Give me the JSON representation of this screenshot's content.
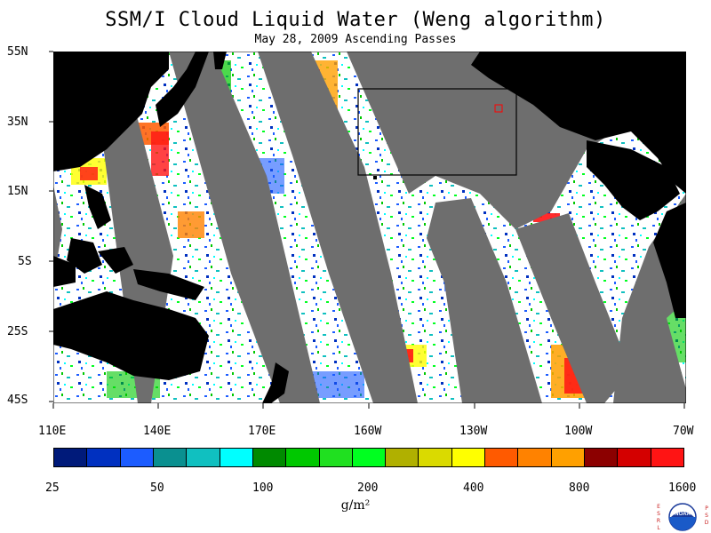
{
  "title": "SSM/I Cloud Liquid Water (Weng algorithm)",
  "subtitle": "May 28, 2009  Ascending Passes",
  "lat_labels": [
    "55N",
    "35N",
    "15N",
    "5S",
    "25S",
    "45S"
  ],
  "lon_labels": [
    "110E",
    "140E",
    "170E",
    "160W",
    "130W",
    "100W",
    "70W"
  ],
  "colorbar": {
    "colors": [
      "#001a7a",
      "#0030c0",
      "#1c5cff",
      "#0a9090",
      "#10c0c0",
      "#00ffff",
      "#008a00",
      "#00c800",
      "#20e020",
      "#00ff20",
      "#b0b000",
      "#dada00",
      "#ffff00",
      "#ff5a00",
      "#ff8200",
      "#ffa000",
      "#8c0000",
      "#d40000",
      "#ff1414"
    ],
    "labels": [
      "25",
      "50",
      "100",
      "200",
      "400",
      "800",
      "1600"
    ]
  },
  "units": "g/m²",
  "logo": {
    "left_text": "ESRL",
    "right_text": "PSD",
    "center_text": "NOAA"
  },
  "colors": {
    "land": "#000000",
    "nodata": "#6e6e6e",
    "clear": "#ffffff"
  }
}
